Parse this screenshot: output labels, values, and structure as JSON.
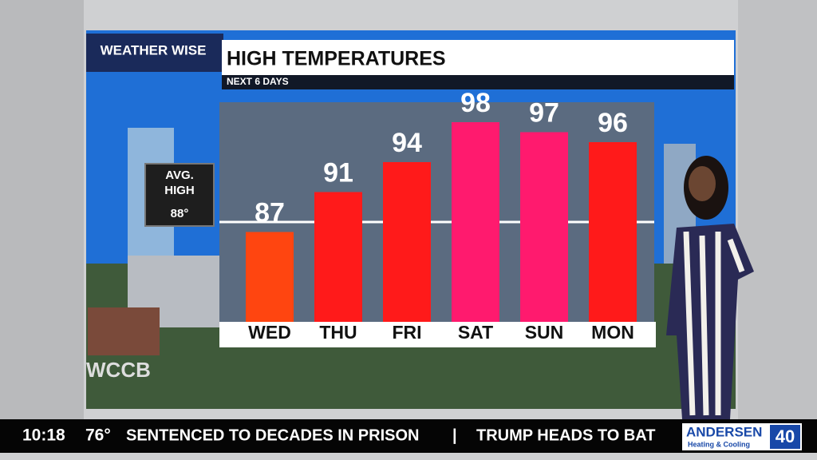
{
  "chart_data": {
    "type": "bar",
    "title": "HIGH TEMPERATURES",
    "subtitle": "NEXT 6 DAYS",
    "categories": [
      "WED",
      "THU",
      "FRI",
      "SAT",
      "SUN",
      "MON"
    ],
    "values": [
      87,
      91,
      94,
      98,
      97,
      96
    ],
    "colors": [
      "#ff4510",
      "#ff1a1a",
      "#ff1a1a",
      "#ff1a6e",
      "#ff1a6e",
      "#ff1a1a"
    ],
    "ylim": [
      78,
      100
    ],
    "reference_line": {
      "label": "AVG. HIGH",
      "value": 88,
      "value_label": "88°"
    }
  },
  "branding": {
    "show_logo": "WEATHER WISE",
    "station": "WCCB"
  },
  "ticker": {
    "time": "10:18",
    "temperature": "76°",
    "headline_1": "SENTENCED TO DECADES IN PRISON",
    "separator": "|",
    "headline_2": "TRUMP HEADS TO BAT",
    "sponsor": "ANDERSEN",
    "sponsor_sub": "Heating & Cooling",
    "sponsor_badge": "40"
  }
}
